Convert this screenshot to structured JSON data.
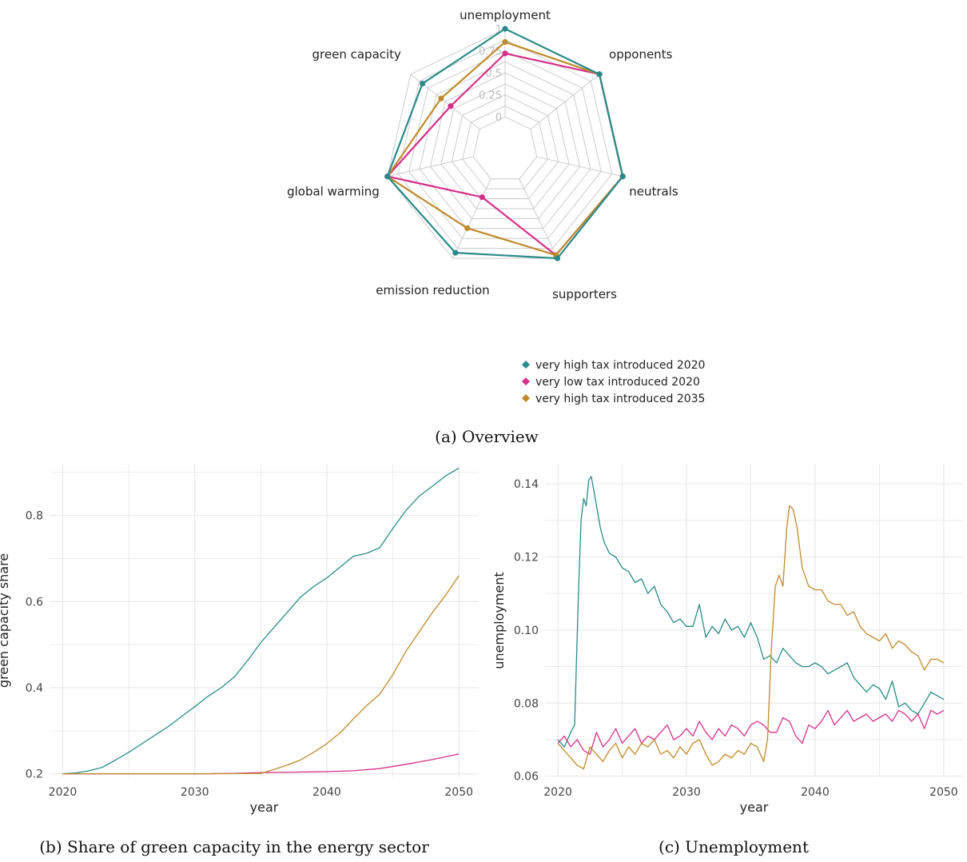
{
  "colors": {
    "very_high_2020": "#2a8a8a",
    "very_low_2020": "#d6308a",
    "very_high_2035": "#bf8a2c",
    "grid": "#e6e6e6",
    "radar_grid": "#cccccc"
  },
  "captions": {
    "a": "(a) Overview",
    "b": "(b) Share of green capacity in the energy sector",
    "c": "(c) Unemployment"
  },
  "chart_data": [
    {
      "type": "radar",
      "axes": [
        "unemployment",
        "opponents",
        "neutrals",
        "supporters",
        "emission reduction",
        "global warming",
        "green capacity"
      ],
      "ticks": [
        "0",
        "0.25",
        "0.5",
        "0.75",
        "1"
      ],
      "legend": [
        "very high tax introduced 2020",
        "very low tax introduced 2020",
        "very high tax introduced 2035"
      ],
      "series": [
        {
          "name": "very high tax introduced 2020",
          "values": [
            1.0,
            1.0,
            1.0,
            1.0,
            0.93,
            1.0,
            0.83
          ]
        },
        {
          "name": "very low tax introduced 2020",
          "values": [
            0.72,
            1.0,
            1.0,
            0.96,
            0.23,
            1.0,
            0.42
          ]
        },
        {
          "name": "very high tax introduced 2035",
          "values": [
            0.85,
            1.0,
            1.0,
            0.96,
            0.62,
            1.0,
            0.56
          ]
        }
      ]
    },
    {
      "type": "line",
      "xlabel": "year",
      "ylabel": "green capacity share",
      "xlim": [
        2019,
        2051.5
      ],
      "ylim": [
        0.192,
        0.92
      ],
      "xticks": [
        2020,
        2030,
        2040,
        2050
      ],
      "yticks": [
        0.2,
        0.4,
        0.6,
        0.8
      ],
      "ytick_labels": [
        "0.2",
        "0.4",
        "0.6",
        "0.8"
      ],
      "series": [
        {
          "name": "very high tax introduced 2020",
          "x": [
            2020,
            2021,
            2022,
            2023,
            2024,
            2025,
            2026,
            2027,
            2028,
            2029,
            2030,
            2031,
            2032,
            2033,
            2034,
            2035,
            2036,
            2037,
            2038,
            2039,
            2040,
            2041,
            2042,
            2043,
            2044,
            2045,
            2046,
            2047,
            2048,
            2049,
            2050
          ],
          "y": [
            0.2,
            0.202,
            0.207,
            0.215,
            0.232,
            0.25,
            0.27,
            0.29,
            0.31,
            0.333,
            0.356,
            0.38,
            0.4,
            0.425,
            0.463,
            0.505,
            0.54,
            0.575,
            0.61,
            0.635,
            0.655,
            0.68,
            0.705,
            0.712,
            0.725,
            0.77,
            0.812,
            0.845,
            0.868,
            0.892,
            0.91
          ]
        },
        {
          "name": "very low tax introduced 2020",
          "x": [
            2020,
            2025,
            2030,
            2033,
            2035,
            2038,
            2040,
            2042,
            2044,
            2046,
            2048,
            2050
          ],
          "y": [
            0.2,
            0.2,
            0.2,
            0.201,
            0.203,
            0.204,
            0.205,
            0.207,
            0.212,
            0.222,
            0.233,
            0.246
          ]
        },
        {
          "name": "very high tax introduced 2035",
          "x": [
            2020,
            2025,
            2030,
            2035,
            2036,
            2037,
            2038,
            2039,
            2040,
            2041,
            2042,
            2043,
            2044,
            2045,
            2046,
            2047,
            2048,
            2049,
            2050
          ],
          "y": [
            0.2,
            0.2,
            0.2,
            0.201,
            0.21,
            0.22,
            0.232,
            0.25,
            0.27,
            0.295,
            0.327,
            0.358,
            0.385,
            0.43,
            0.485,
            0.53,
            0.575,
            0.615,
            0.66
          ]
        }
      ]
    },
    {
      "type": "line",
      "xlabel": "year",
      "ylabel": "unemployment",
      "xlim": [
        2019,
        2051.5
      ],
      "ylim": [
        0.0597,
        0.1455
      ],
      "xticks": [
        2020,
        2030,
        2040,
        2050
      ],
      "yticks": [
        0.06,
        0.08,
        0.1,
        0.12,
        0.14
      ],
      "ytick_labels": [
        "0.06",
        "0.08",
        "0.10",
        "0.12",
        "0.14"
      ],
      "series": [
        {
          "name": "very high tax introduced 2020",
          "x": [
            2020,
            2020.5,
            2021,
            2021.3,
            2021.6,
            2021.8,
            2022,
            2022.2,
            2022.4,
            2022.6,
            2022.8,
            2023,
            2023.3,
            2023.6,
            2024,
            2024.5,
            2025,
            2025.5,
            2026,
            2026.5,
            2027,
            2027.5,
            2028,
            2028.5,
            2029,
            2029.5,
            2030,
            2030.5,
            2031,
            2031.5,
            2032,
            2032.5,
            2033,
            2033.5,
            2034,
            2034.5,
            2035,
            2035.5,
            2036,
            2036.5,
            2037,
            2037.5,
            2038,
            2038.5,
            2039,
            2039.5,
            2040,
            2040.5,
            2041,
            2041.5,
            2042,
            2042.5,
            2043,
            2043.5,
            2044,
            2044.5,
            2045,
            2045.5,
            2046,
            2046.5,
            2047,
            2047.5,
            2048,
            2048.5,
            2049,
            2049.5,
            2050
          ],
          "y": [
            0.07,
            0.068,
            0.072,
            0.074,
            0.11,
            0.13,
            0.136,
            0.134,
            0.141,
            0.142,
            0.138,
            0.134,
            0.128,
            0.124,
            0.121,
            0.12,
            0.117,
            0.116,
            0.113,
            0.114,
            0.11,
            0.112,
            0.107,
            0.105,
            0.102,
            0.103,
            0.101,
            0.101,
            0.107,
            0.098,
            0.101,
            0.099,
            0.103,
            0.1,
            0.101,
            0.098,
            0.102,
            0.098,
            0.092,
            0.093,
            0.091,
            0.095,
            0.093,
            0.091,
            0.09,
            0.09,
            0.091,
            0.09,
            0.088,
            0.089,
            0.09,
            0.091,
            0.087,
            0.085,
            0.083,
            0.085,
            0.084,
            0.081,
            0.086,
            0.079,
            0.08,
            0.078,
            0.077,
            0.08,
            0.083,
            0.082,
            0.081
          ]
        },
        {
          "name": "very low tax introduced 2020",
          "x": [
            2020,
            2020.5,
            2021,
            2021.5,
            2022,
            2022.5,
            2023,
            2023.5,
            2024,
            2024.5,
            2025,
            2025.5,
            2026,
            2026.5,
            2027,
            2027.5,
            2028,
            2028.5,
            2029,
            2029.5,
            2030,
            2030.5,
            2031,
            2031.5,
            2032,
            2032.5,
            2033,
            2033.5,
            2034,
            2034.5,
            2035,
            2035.5,
            2036,
            2036.5,
            2037,
            2037.5,
            2038,
            2038.5,
            2039,
            2039.5,
            2040,
            2040.5,
            2041,
            2041.5,
            2042,
            2042.5,
            2043,
            2043.5,
            2044,
            2044.5,
            2045,
            2045.5,
            2046,
            2046.5,
            2047,
            2047.5,
            2048,
            2048.5,
            2049,
            2049.5,
            2050
          ],
          "y": [
            0.069,
            0.071,
            0.068,
            0.07,
            0.067,
            0.066,
            0.072,
            0.068,
            0.07,
            0.073,
            0.069,
            0.071,
            0.073,
            0.069,
            0.071,
            0.07,
            0.072,
            0.074,
            0.07,
            0.071,
            0.073,
            0.071,
            0.075,
            0.072,
            0.07,
            0.073,
            0.071,
            0.074,
            0.073,
            0.071,
            0.074,
            0.075,
            0.074,
            0.072,
            0.072,
            0.076,
            0.075,
            0.071,
            0.069,
            0.074,
            0.073,
            0.075,
            0.078,
            0.074,
            0.076,
            0.078,
            0.075,
            0.076,
            0.077,
            0.075,
            0.076,
            0.077,
            0.075,
            0.078,
            0.077,
            0.075,
            0.077,
            0.073,
            0.078,
            0.077,
            0.078
          ]
        },
        {
          "name": "very high tax introduced 2035",
          "x": [
            2020,
            2020.5,
            2021,
            2021.5,
            2022,
            2022.5,
            2023,
            2023.5,
            2024,
            2024.5,
            2025,
            2025.5,
            2026,
            2026.5,
            2027,
            2027.5,
            2028,
            2028.5,
            2029,
            2029.5,
            2030,
            2030.5,
            2031,
            2031.5,
            2032,
            2032.5,
            2033,
            2033.5,
            2034,
            2034.5,
            2035,
            2035.5,
            2036,
            2036.3,
            2036.6,
            2036.9,
            2037.2,
            2037.5,
            2037.8,
            2038,
            2038.3,
            2038.6,
            2039,
            2039.5,
            2040,
            2040.5,
            2041,
            2041.5,
            2042,
            2042.5,
            2043,
            2043.5,
            2044,
            2044.5,
            2045,
            2045.5,
            2046,
            2046.5,
            2047,
            2047.5,
            2048,
            2048.5,
            2049,
            2049.5,
            2050
          ],
          "y": [
            0.069,
            0.067,
            0.065,
            0.063,
            0.062,
            0.068,
            0.066,
            0.064,
            0.067,
            0.069,
            0.065,
            0.068,
            0.066,
            0.069,
            0.068,
            0.07,
            0.066,
            0.067,
            0.065,
            0.068,
            0.066,
            0.069,
            0.07,
            0.066,
            0.063,
            0.064,
            0.066,
            0.065,
            0.067,
            0.066,
            0.069,
            0.068,
            0.064,
            0.07,
            0.095,
            0.112,
            0.115,
            0.112,
            0.128,
            0.134,
            0.133,
            0.128,
            0.117,
            0.112,
            0.111,
            0.111,
            0.108,
            0.107,
            0.107,
            0.104,
            0.105,
            0.101,
            0.099,
            0.098,
            0.097,
            0.099,
            0.095,
            0.097,
            0.096,
            0.094,
            0.093,
            0.089,
            0.092,
            0.092,
            0.091
          ]
        }
      ]
    }
  ]
}
